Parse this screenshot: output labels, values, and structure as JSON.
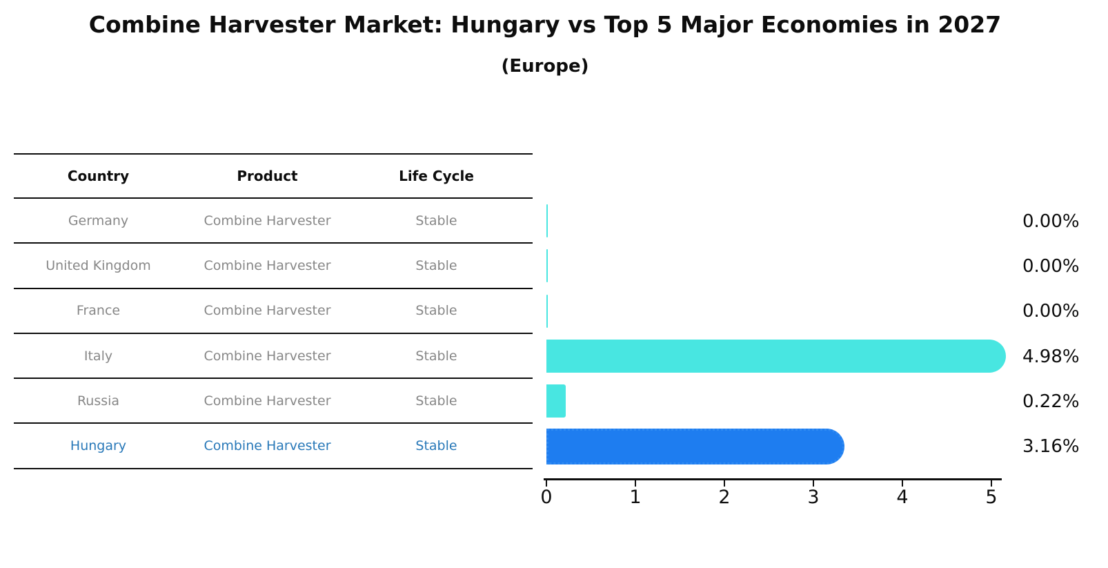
{
  "title": "Combine Harvester Market: Hungary vs Top 5 Major Economies in 2027",
  "subtitle": "(Europe)",
  "table": {
    "headers": [
      "Country",
      "Product",
      "Life Cycle"
    ],
    "rows": [
      {
        "country": "Germany",
        "product": "Combine Harvester",
        "life_cycle": "Stable",
        "highlighted": false
      },
      {
        "country": "United Kingdom",
        "product": "Combine Harvester",
        "life_cycle": "Stable",
        "highlighted": false
      },
      {
        "country": "France",
        "product": "Combine Harvester",
        "life_cycle": "Stable",
        "highlighted": false
      },
      {
        "country": "Italy",
        "product": "Combine Harvester",
        "life_cycle": "Stable",
        "highlighted": false
      },
      {
        "country": "Russia",
        "product": "Combine Harvester",
        "life_cycle": "Stable",
        "highlighted": false
      },
      {
        "country": "Hungary",
        "product": "Combine Harvester",
        "life_cycle": "Stable",
        "highlighted": true
      }
    ]
  },
  "chart_data": {
    "type": "bar",
    "orientation": "horizontal",
    "title": "Combine Harvester Market: Hungary vs Top 5 Major Economies in 2027",
    "subtitle": "(Europe)",
    "categories": [
      "Germany",
      "United Kingdom",
      "France",
      "Italy",
      "Russia",
      "Hungary"
    ],
    "values": [
      0.0,
      0.0,
      0.0,
      4.98,
      0.22,
      3.16
    ],
    "value_labels": [
      "0.00%",
      "0.00%",
      "0.00%",
      "4.98%",
      "0.22%",
      "3.16%"
    ],
    "value_label_position": "right",
    "x_tick_labels": [
      "0",
      "1",
      "2",
      "3",
      "4",
      "5"
    ],
    "x_ticks": [
      0,
      1,
      2,
      3,
      4,
      5
    ],
    "xlim": [
      0,
      5.15
    ],
    "xlabel": "",
    "ylabel": "",
    "grid": false,
    "legend": false,
    "highlight_index": 5,
    "highlight_style": "dotted-border",
    "colors": {
      "bar_default": "#48e6e1",
      "bar_highlight": "#1e7df0",
      "highlight_border": "#2f8af2",
      "highlight_text": "#2878b8",
      "table_text": "#878787",
      "axis_text": "#0d0d0d"
    }
  }
}
